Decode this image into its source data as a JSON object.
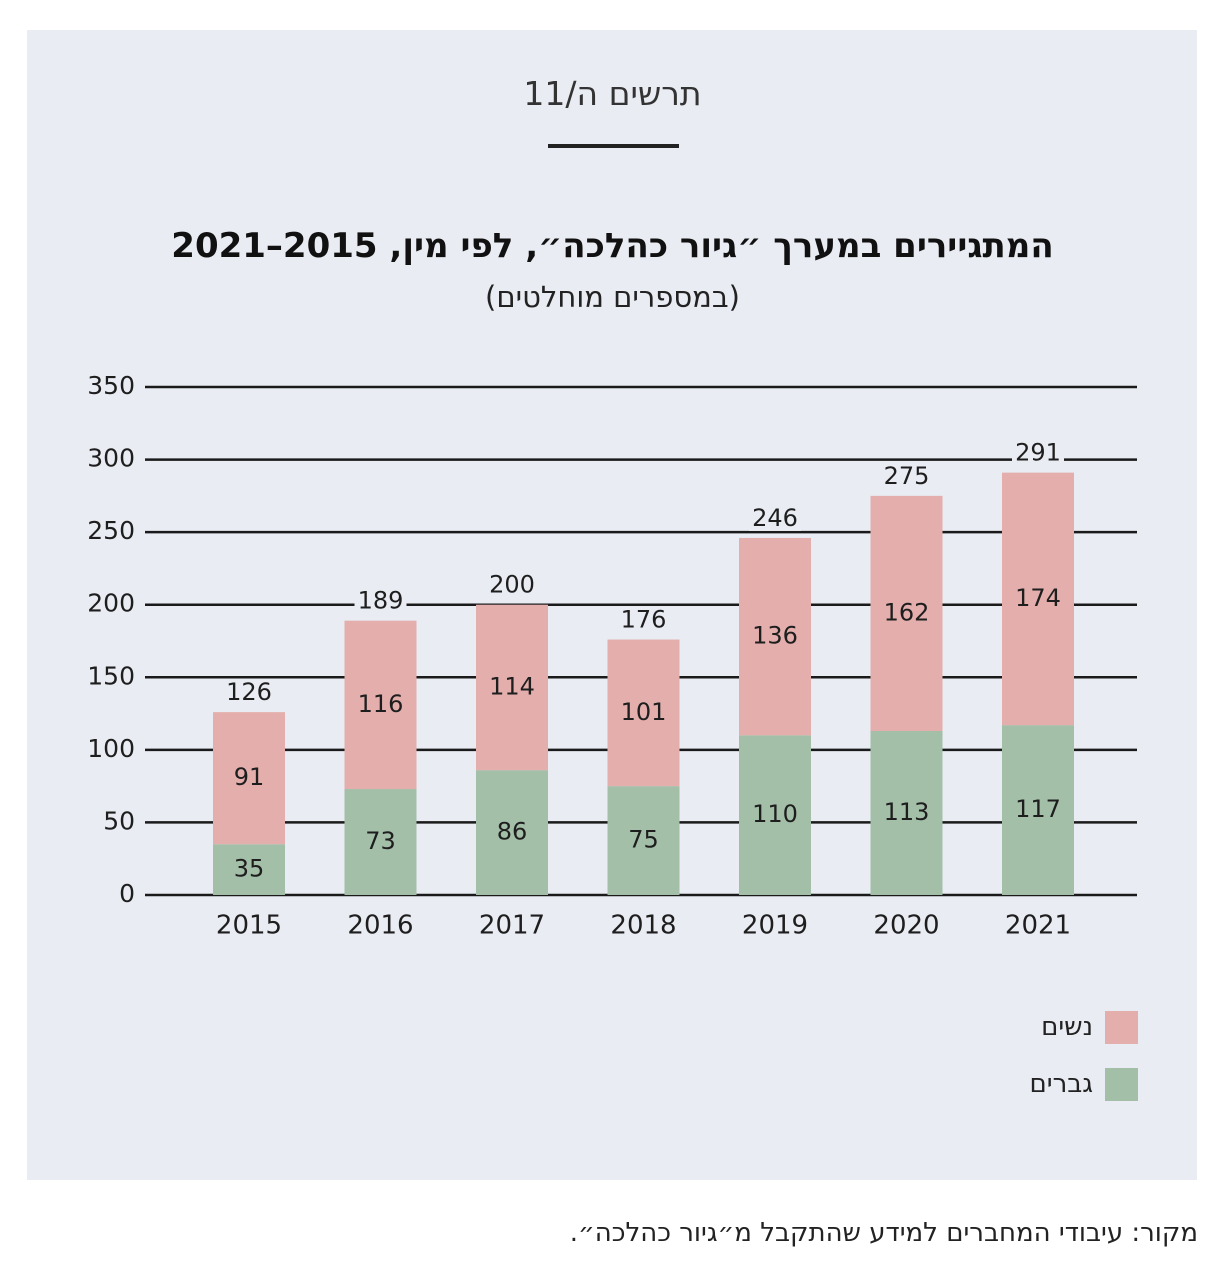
{
  "figure_label": "תרשים ה/11",
  "source_note": "מקור: עיבודי המחברים למידע שהתקבל מ״גיור כהלכה״.",
  "colors": {
    "women": "#e3aeac",
    "men": "#a3bfa8",
    "grid": "#1a1a1a",
    "panel": "#e9ecf3"
  },
  "chart_data": {
    "type": "bar",
    "stacked": true,
    "title": "המתגיירים במערך ״גיור כהלכה״, לפי מין, 2015–2021",
    "subtitle": "(במספרים מוחלטים)",
    "categories": [
      "2015",
      "2016",
      "2017",
      "2018",
      "2019",
      "2020",
      "2021"
    ],
    "series": [
      {
        "name": "גברים",
        "values": [
          35,
          73,
          86,
          75,
          110,
          113,
          117
        ]
      },
      {
        "name": "נשים",
        "values": [
          91,
          116,
          114,
          101,
          136,
          162,
          174
        ]
      }
    ],
    "totals": [
      126,
      189,
      200,
      176,
      246,
      275,
      291
    ],
    "ylim": [
      0,
      350
    ],
    "yticks": [
      "0",
      "50",
      "100",
      "150",
      "200",
      "250",
      "300",
      "350"
    ],
    "grid": true,
    "legend_position": "bottom-right",
    "legend": [
      "נשים",
      "גברים"
    ]
  }
}
